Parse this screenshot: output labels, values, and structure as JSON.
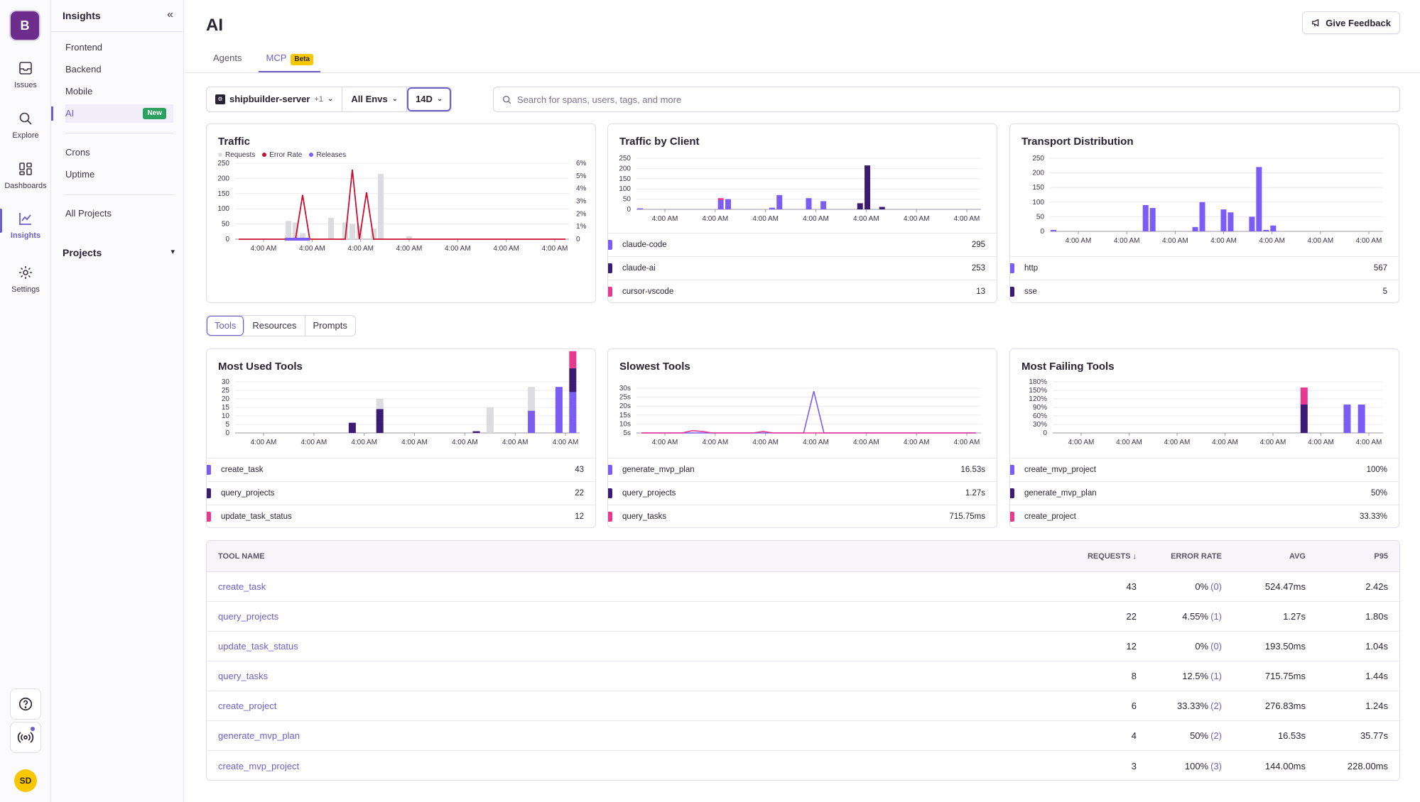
{
  "org": {
    "initial": "B"
  },
  "rail": {
    "items": [
      {
        "label": "Issues",
        "icon": "inbox-icon"
      },
      {
        "label": "Explore",
        "icon": "search-icon"
      },
      {
        "label": "Dashboards",
        "icon": "dashboard-icon"
      },
      {
        "label": "Insights",
        "icon": "chart-icon",
        "active": true
      },
      {
        "label": "Settings",
        "icon": "gear-icon"
      }
    ],
    "user_initials": "SD"
  },
  "subnav": {
    "title": "Insights",
    "items": [
      "Frontend",
      "Backend",
      "Mobile",
      "AI"
    ],
    "ai_badge": "New",
    "items2": [
      "Crons",
      "Uptime"
    ],
    "all_projects": "All Projects",
    "projects_heading": "Projects"
  },
  "header": {
    "title": "AI",
    "feedback": "Give Feedback",
    "tabs": [
      {
        "label": "Agents"
      },
      {
        "label": "MCP",
        "badge": "Beta"
      }
    ]
  },
  "filters": {
    "project": "shipbuilder-server",
    "project_extra": "+1",
    "env": "All Envs",
    "period": "14D",
    "search_placeholder": "Search for spans, users, tags, and more"
  },
  "colors": {
    "accent": "#6c5fc7",
    "requests": "#dcdbe0",
    "error": "#c8102e",
    "releases": "#7b5cf5",
    "purple": "#7b5cf5",
    "dark": "#3b1b74",
    "pink": "#e6398f"
  },
  "traffic": {
    "title": "Traffic",
    "legend": [
      "Requests",
      "Error Rate",
      "Releases"
    ],
    "y_ticks": [
      "250",
      "200",
      "150",
      "100",
      "50",
      "0"
    ],
    "y2_ticks": [
      "6%",
      "5%",
      "4%",
      "3%",
      "2%",
      "1%",
      "0"
    ],
    "x_ticks": [
      "4:00 AM",
      "4:00 AM",
      "4:00 AM",
      "4:00 AM",
      "4:00 AM",
      "4:00 AM",
      "4:00 AM"
    ]
  },
  "traffic_by_client": {
    "title": "Traffic by Client",
    "y_ticks": [
      "250",
      "200",
      "150",
      "100",
      "50",
      "0"
    ],
    "x_ticks": [
      "4:00 AM",
      "4:00 AM",
      "4:00 AM",
      "4:00 AM",
      "4:00 AM",
      "4:00 AM",
      "4:00 AM"
    ],
    "rows": [
      {
        "name": "claude-code",
        "value": "295",
        "color": "#7b5cf5"
      },
      {
        "name": "claude-ai",
        "value": "253",
        "color": "#3b1b74"
      },
      {
        "name": "cursor-vscode",
        "value": "13",
        "color": "#e6398f"
      }
    ]
  },
  "transport": {
    "title": "Transport Distribution",
    "y_ticks": [
      "250",
      "200",
      "150",
      "100",
      "50",
      "0"
    ],
    "x_ticks": [
      "4:00 AM",
      "4:00 AM",
      "4:00 AM",
      "4:00 AM",
      "4:00 AM",
      "4:00 AM",
      "4:00 AM"
    ],
    "rows": [
      {
        "name": "http",
        "value": "567",
        "color": "#7b5cf5"
      },
      {
        "name": "sse",
        "value": "5",
        "color": "#3b1b74"
      }
    ]
  },
  "seg_tabs": [
    "Tools",
    "Resources",
    "Prompts"
  ],
  "most_used": {
    "title": "Most Used Tools",
    "y_ticks": [
      "30",
      "25",
      "20",
      "15",
      "10",
      "5",
      "0"
    ],
    "x_ticks": [
      "4:00 AM",
      "4:00 AM",
      "4:00 AM",
      "4:00 AM",
      "4:00 AM",
      "4:00 AM",
      "4:00 AM"
    ],
    "rows": [
      {
        "name": "create_task",
        "value": "43",
        "color": "#7b5cf5"
      },
      {
        "name": "query_projects",
        "value": "22",
        "color": "#3b1b74"
      },
      {
        "name": "update_task_status",
        "value": "12",
        "color": "#e6398f"
      }
    ]
  },
  "slowest": {
    "title": "Slowest Tools",
    "y_ticks": [
      "30s",
      "25s",
      "20s",
      "15s",
      "10s",
      "5s"
    ],
    "x_ticks": [
      "4:00 AM",
      "4:00 AM",
      "4:00 AM",
      "4:00 AM",
      "4:00 AM",
      "4:00 AM",
      "4:00 AM"
    ],
    "rows": [
      {
        "name": "generate_mvp_plan",
        "value": "16.53s",
        "color": "#7b5cf5"
      },
      {
        "name": "query_projects",
        "value": "1.27s",
        "color": "#3b1b74"
      },
      {
        "name": "query_tasks",
        "value": "715.75ms",
        "color": "#e6398f"
      }
    ]
  },
  "failing": {
    "title": "Most Failing Tools",
    "y_ticks": [
      "180%",
      "150%",
      "120%",
      "90%",
      "60%",
      "30%",
      "0"
    ],
    "x_ticks": [
      "4:00 AM",
      "4:00 AM",
      "4:00 AM",
      "4:00 AM",
      "4:00 AM",
      "4:00 AM",
      "4:00 AM"
    ],
    "rows": [
      {
        "name": "create_mvp_project",
        "value": "100%",
        "color": "#7b5cf5"
      },
      {
        "name": "generate_mvp_plan",
        "value": "50%",
        "color": "#3b1b74"
      },
      {
        "name": "create_project",
        "value": "33.33%",
        "color": "#e6398f"
      }
    ]
  },
  "table": {
    "headers": {
      "name": "TOOL NAME",
      "requests": "REQUESTS",
      "error_rate": "ERROR RATE",
      "avg": "AVG",
      "p95": "P95"
    },
    "rows": [
      {
        "name": "create_task",
        "requests": "43",
        "error_rate": "0%",
        "errors": "(0)",
        "avg": "524.47ms",
        "p95": "2.42s"
      },
      {
        "name": "query_projects",
        "requests": "22",
        "error_rate": "4.55%",
        "errors": "(1)",
        "avg": "1.27s",
        "p95": "1.80s"
      },
      {
        "name": "update_task_status",
        "requests": "12",
        "error_rate": "0%",
        "errors": "(0)",
        "avg": "193.50ms",
        "p95": "1.04s"
      },
      {
        "name": "query_tasks",
        "requests": "8",
        "error_rate": "12.5%",
        "errors": "(1)",
        "avg": "715.75ms",
        "p95": "1.44s"
      },
      {
        "name": "create_project",
        "requests": "6",
        "error_rate": "33.33%",
        "errors": "(2)",
        "avg": "276.83ms",
        "p95": "1.24s"
      },
      {
        "name": "generate_mvp_plan",
        "requests": "4",
        "error_rate": "50%",
        "errors": "(2)",
        "avg": "16.53s",
        "p95": "35.77s"
      },
      {
        "name": "create_mvp_project",
        "requests": "3",
        "error_rate": "100%",
        "errors": "(3)",
        "avg": "144.00ms",
        "p95": "228.00ms"
      }
    ]
  },
  "chart_data": [
    {
      "type": "bar",
      "title": "Traffic",
      "ylim": [
        0,
        250
      ],
      "y2lim": [
        0,
        6
      ],
      "series": [
        {
          "name": "Requests",
          "values": [
            0,
            0,
            0,
            0,
            0,
            0,
            0,
            60,
            55,
            20,
            0,
            0,
            0,
            70,
            0,
            55,
            50,
            45,
            0,
            35,
            215,
            0,
            0,
            0,
            10,
            0,
            0,
            0,
            0,
            0,
            0,
            0,
            0,
            0,
            0,
            0,
            0,
            0,
            0,
            0,
            0,
            0,
            0,
            0,
            0,
            0,
            0
          ]
        },
        {
          "name": "Error Rate",
          "values": [
            0,
            0,
            0,
            0,
            0,
            0,
            0,
            0,
            0,
            3.5,
            0,
            0,
            0,
            0,
            0,
            0,
            5.5,
            0,
            3.7,
            0,
            0,
            0,
            0,
            0,
            0,
            0,
            0,
            0,
            0,
            0,
            0,
            0,
            0,
            0,
            0,
            0,
            0,
            0,
            0,
            0,
            0,
            0,
            0,
            0,
            0,
            0,
            0
          ]
        }
      ]
    },
    {
      "type": "bar",
      "title": "Traffic by Client",
      "ylim": [
        0,
        250
      ],
      "series": [
        {
          "name": "claude-code",
          "values": [
            5,
            0,
            0,
            0,
            0,
            0,
            0,
            0,
            0,
            0,
            0,
            45,
            50,
            0,
            0,
            0,
            0,
            0,
            8,
            70,
            0,
            0,
            0,
            55,
            0,
            40,
            0,
            0,
            0,
            0,
            0,
            0,
            0,
            0,
            0,
            0,
            0,
            0,
            0,
            0,
            0,
            0,
            0,
            0,
            0,
            0,
            0
          ]
        },
        {
          "name": "claude-ai",
          "values": [
            0,
            0,
            0,
            0,
            0,
            0,
            0,
            0,
            0,
            0,
            0,
            0,
            0,
            0,
            0,
            0,
            0,
            0,
            0,
            0,
            0,
            0,
            0,
            0,
            0,
            0,
            0,
            0,
            0,
            0,
            30,
            215,
            0,
            12,
            0,
            0,
            0,
            0,
            0,
            0,
            0,
            0,
            0,
            0,
            0,
            0,
            0
          ]
        },
        {
          "name": "cursor-vscode",
          "values": [
            0,
            0,
            0,
            0,
            0,
            0,
            0,
            0,
            0,
            0,
            0,
            10,
            0,
            0,
            0,
            0,
            0,
            0,
            0,
            0,
            0,
            0,
            0,
            0,
            0,
            0,
            0,
            0,
            0,
            0,
            0,
            0,
            0,
            0,
            0,
            0,
            0,
            0,
            0,
            0,
            0,
            0,
            0,
            0,
            0,
            0,
            0
          ]
        }
      ]
    },
    {
      "type": "bar",
      "title": "Transport Distribution",
      "ylim": [
        0,
        250
      ],
      "series": [
        {
          "name": "http",
          "values": [
            5,
            0,
            0,
            0,
            0,
            0,
            0,
            0,
            0,
            0,
            0,
            0,
            0,
            90,
            80,
            0,
            0,
            0,
            0,
            0,
            15,
            100,
            0,
            0,
            75,
            65,
            0,
            0,
            50,
            220,
            5,
            20,
            0,
            0,
            0,
            0,
            0,
            0,
            0,
            0,
            0,
            0,
            0,
            0,
            0,
            0,
            0
          ]
        },
        {
          "name": "sse",
          "values": [
            0,
            0,
            0,
            0,
            0,
            0,
            0,
            0,
            0,
            0,
            0,
            0,
            0,
            0,
            0,
            0,
            0,
            0,
            0,
            0,
            0,
            0,
            0,
            0,
            0,
            0,
            0,
            0,
            0,
            0,
            0,
            0,
            0,
            0,
            0,
            0,
            0,
            0,
            0,
            0,
            0,
            0,
            0,
            0,
            0,
            0,
            0
          ]
        }
      ]
    },
    {
      "type": "bar",
      "title": "Most Used Tools",
      "ylim": [
        0,
        30
      ],
      "series": [
        {
          "name": "create_task",
          "values": [
            0,
            0,
            0,
            0,
            0,
            0,
            0,
            0,
            0,
            0,
            0,
            0,
            0,
            0,
            0,
            0,
            0,
            0,
            0,
            0,
            0,
            13,
            0,
            27,
            24
          ]
        },
        {
          "name": "query_projects",
          "values": [
            0,
            0,
            0,
            0,
            0,
            0,
            0,
            0,
            6,
            0,
            14,
            0,
            0,
            0,
            0,
            0,
            0,
            1,
            0,
            0,
            0,
            0,
            0,
            0,
            14
          ]
        },
        {
          "name": "update_task_status",
          "values": [
            0,
            0,
            0,
            0,
            0,
            0,
            0,
            0,
            0,
            0,
            0,
            0,
            0,
            0,
            0,
            0,
            0,
            0,
            0,
            0,
            0,
            0,
            0,
            0,
            10
          ]
        }
      ]
    },
    {
      "type": "line",
      "title": "Slowest Tools",
      "series": [
        {
          "name": "generate_mvp_plan",
          "values": [
            0,
            0,
            0,
            0,
            0,
            0,
            0,
            0,
            0,
            0,
            0,
            0,
            0,
            0,
            0,
            0,
            0,
            28,
            0,
            0,
            0,
            0,
            0,
            0,
            0,
            0,
            0,
            0,
            0,
            0,
            0,
            0,
            0,
            0
          ]
        },
        {
          "name": "query_tasks",
          "values": [
            0,
            0,
            0,
            0,
            0,
            1.5,
            1,
            0,
            0,
            0,
            0,
            0,
            1,
            0,
            0,
            0,
            0,
            0,
            0,
            0,
            0,
            0,
            0,
            0,
            0,
            0,
            0,
            0,
            0,
            0,
            0,
            0,
            0,
            0
          ]
        }
      ]
    },
    {
      "type": "bar",
      "title": "Most Failing Tools",
      "ylim": [
        0,
        180
      ],
      "series": [
        {
          "name": "create_mvp_project",
          "values": [
            0,
            0,
            0,
            0,
            0,
            0,
            0,
            0,
            0,
            0,
            0,
            0,
            0,
            0,
            0,
            0,
            0,
            0,
            0,
            0,
            100,
            100,
            0
          ]
        },
        {
          "name": "generate_mvp_plan",
          "values": [
            0,
            0,
            0,
            0,
            0,
            0,
            0,
            0,
            0,
            0,
            0,
            0,
            0,
            0,
            0,
            0,
            0,
            100,
            0,
            0,
            0,
            0,
            0
          ]
        },
        {
          "name": "create_project",
          "values": [
            0,
            0,
            0,
            0,
            0,
            0,
            0,
            0,
            0,
            0,
            0,
            0,
            0,
            0,
            0,
            0,
            0,
            60,
            0,
            0,
            0,
            0,
            0
          ]
        }
      ]
    }
  ]
}
